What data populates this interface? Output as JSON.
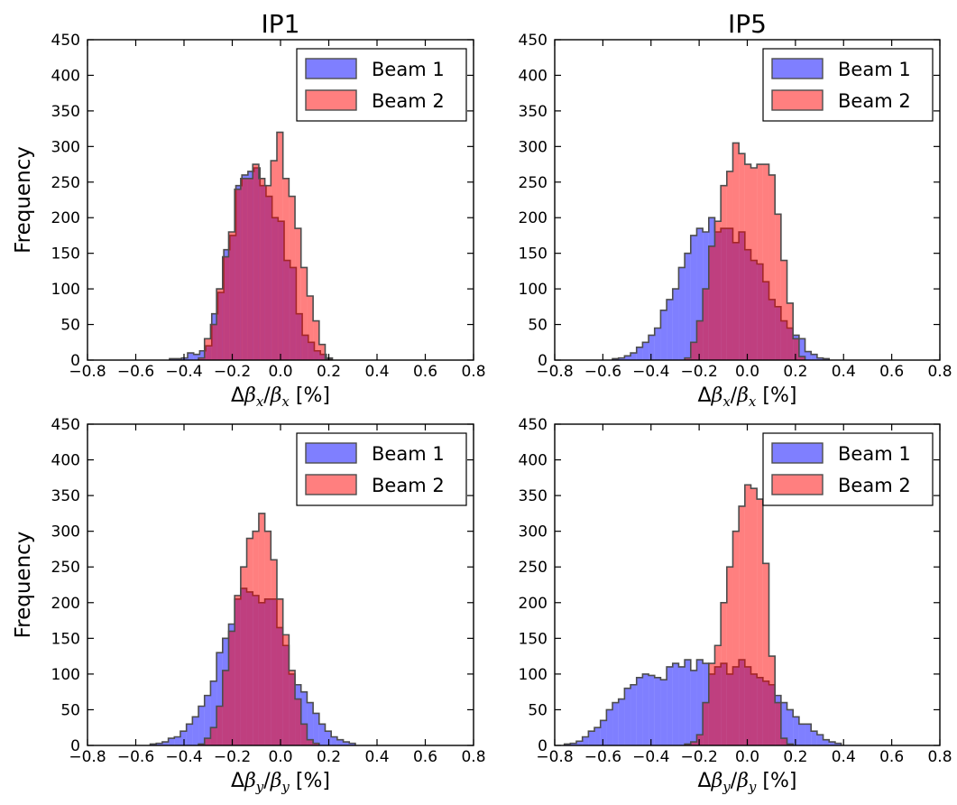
{
  "colors": {
    "beam1": "#0000ff",
    "beam2": "#ff0000",
    "edge": "#4d4d4d",
    "alpha": 0.5
  },
  "chart_data": [
    {
      "type": "histogram",
      "title": "IP1",
      "ylabel": "Frequency",
      "xlabel": {
        "delta": "Δ",
        "num": "β",
        "num_sub": "x",
        "slash": "/",
        "den": "β",
        "den_sub": "x",
        "unit": " [%]"
      },
      "xlim": [
        -0.8,
        0.8
      ],
      "ylim": [
        0,
        450
      ],
      "xticks": [
        "−0.8",
        "−0.6",
        "−0.4",
        "−0.2",
        "0.0",
        "0.2",
        "0.4",
        "0.6",
        "0.8"
      ],
      "yticks": [
        "0",
        "50",
        "100",
        "150",
        "200",
        "250",
        "300",
        "350",
        "400",
        "450"
      ],
      "legend": {
        "position": "top-right",
        "entries": [
          "Beam 1",
          "Beam 2"
        ]
      },
      "series": [
        {
          "name": "Beam 1",
          "bin_start": -0.46,
          "bin_width": 0.025,
          "counts": [
            2,
            2,
            3,
            10,
            8,
            13,
            20,
            65,
            95,
            155,
            175,
            245,
            260,
            265,
            270,
            245,
            230,
            200,
            195,
            140,
            130,
            65,
            35,
            25,
            13,
            8,
            3
          ]
        },
        {
          "name": "Beam 2",
          "bin_start": -0.34,
          "bin_width": 0.025,
          "counts": [
            3,
            30,
            50,
            100,
            145,
            180,
            240,
            255,
            255,
            275,
            255,
            245,
            280,
            320,
            255,
            230,
            185,
            130,
            90,
            55,
            22,
            2
          ]
        }
      ]
    },
    {
      "type": "histogram",
      "title": "IP5",
      "ylabel": "",
      "xlabel": {
        "delta": "Δ",
        "num": "β",
        "num_sub": "x",
        "slash": "/",
        "den": "β",
        "den_sub": "x",
        "unit": " [%]"
      },
      "xlim": [
        -0.8,
        0.8
      ],
      "ylim": [
        0,
        450
      ],
      "xticks": [
        "−0.8",
        "−0.6",
        "−0.4",
        "−0.2",
        "0.0",
        "0.2",
        "0.4",
        "0.6",
        "0.8"
      ],
      "yticks": [
        "0",
        "50",
        "100",
        "150",
        "200",
        "250",
        "300",
        "350",
        "400",
        "450"
      ],
      "legend": {
        "position": "top-right",
        "entries": [
          "Beam 1",
          "Beam 2"
        ]
      },
      "series": [
        {
          "name": "Beam 1",
          "bin_start": -0.56,
          "bin_width": 0.025,
          "counts": [
            2,
            3,
            6,
            10,
            18,
            25,
            35,
            45,
            70,
            85,
            100,
            130,
            150,
            175,
            185,
            180,
            200,
            180,
            185,
            185,
            165,
            180,
            155,
            140,
            135,
            110,
            85,
            75,
            55,
            45,
            35,
            30,
            12,
            8,
            3,
            2
          ]
        },
        {
          "name": "Beam 2",
          "bin_start": -0.26,
          "bin_width": 0.025,
          "counts": [
            3,
            25,
            55,
            100,
            160,
            195,
            245,
            265,
            305,
            290,
            275,
            270,
            275,
            275,
            260,
            205,
            140,
            80,
            30,
            5
          ]
        }
      ]
    },
    {
      "type": "histogram",
      "title": "",
      "ylabel": "Frequency",
      "xlabel": {
        "delta": "Δ",
        "num": "β",
        "num_sub": "y",
        "slash": "/",
        "den": "β",
        "den_sub": "y",
        "unit": " [%]"
      },
      "xlim": [
        -0.8,
        0.8
      ],
      "ylim": [
        0,
        450
      ],
      "xticks": [
        "−0.8",
        "−0.6",
        "−0.4",
        "−0.2",
        "0.0",
        "0.2",
        "0.4",
        "0.6",
        "0.8"
      ],
      "yticks": [
        "0",
        "50",
        "100",
        "150",
        "200",
        "250",
        "300",
        "350",
        "400",
        "450"
      ],
      "legend": {
        "position": "top-right",
        "entries": [
          "Beam 1",
          "Beam 2"
        ]
      },
      "series": [
        {
          "name": "Beam 1",
          "bin_start": -0.54,
          "bin_width": 0.025,
          "counts": [
            2,
            3,
            5,
            10,
            12,
            20,
            30,
            40,
            55,
            70,
            90,
            130,
            150,
            170,
            205,
            220,
            215,
            210,
            200,
            205,
            205,
            165,
            140,
            100,
            85,
            75,
            60,
            45,
            30,
            20,
            12,
            8,
            5,
            3
          ]
        },
        {
          "name": "Beam 2",
          "bin_start": -0.34,
          "bin_width": 0.025,
          "counts": [
            2,
            10,
            25,
            55,
            105,
            160,
            210,
            250,
            290,
            300,
            325,
            300,
            260,
            205,
            155,
            105,
            65,
            30,
            8,
            3
          ]
        }
      ]
    },
    {
      "type": "histogram",
      "title": "",
      "ylabel": "",
      "xlabel": {
        "delta": "Δ",
        "num": "β",
        "num_sub": "y",
        "slash": "/",
        "den": "β",
        "den_sub": "y",
        "unit": " [%]"
      },
      "xlim": [
        -0.8,
        0.8
      ],
      "ylim": [
        0,
        450
      ],
      "xticks": [
        "−0.8",
        "−0.6",
        "−0.4",
        "−0.2",
        "0.0",
        "0.2",
        "0.4",
        "0.6",
        "0.8"
      ],
      "yticks": [
        "0",
        "50",
        "100",
        "150",
        "200",
        "250",
        "300",
        "350",
        "400",
        "450"
      ],
      "legend": {
        "position": "top-right",
        "entries": [
          "Beam 1",
          "Beam 2"
        ]
      },
      "series": [
        {
          "name": "Beam 1",
          "bin_start": -0.76,
          "bin_width": 0.025,
          "counts": [
            2,
            3,
            6,
            12,
            20,
            25,
            35,
            50,
            60,
            65,
            80,
            85,
            95,
            100,
            98,
            95,
            92,
            110,
            115,
            110,
            120,
            105,
            120,
            115,
            100,
            110,
            115,
            100,
            110,
            120,
            110,
            100,
            95,
            90,
            85,
            70,
            60,
            50,
            40,
            30,
            30,
            20,
            15,
            8,
            5,
            3
          ]
        },
        {
          "name": "Beam 2",
          "bin_start": -0.26,
          "bin_width": 0.025,
          "counts": [
            2,
            5,
            15,
            60,
            115,
            140,
            200,
            250,
            300,
            335,
            365,
            360,
            345,
            255,
            125,
            60,
            10,
            2
          ]
        }
      ]
    }
  ]
}
